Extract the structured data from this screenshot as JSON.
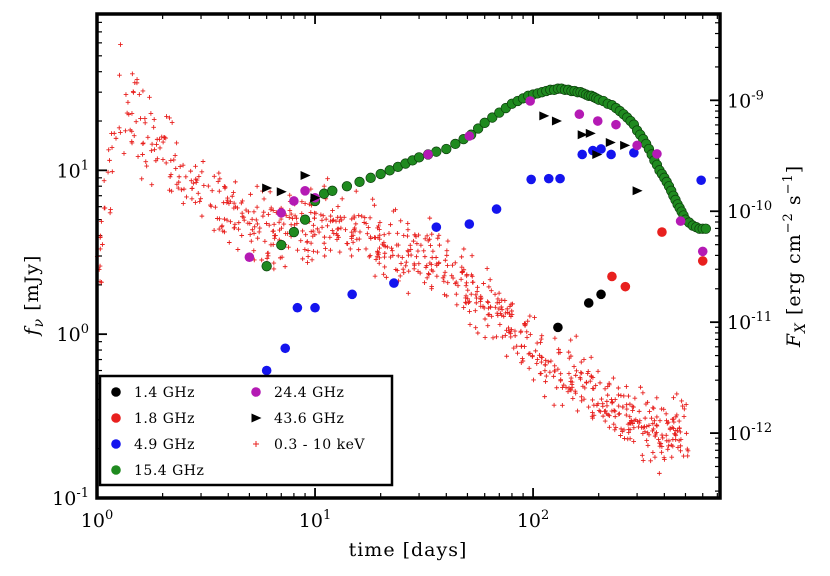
{
  "chart_data": {
    "type": "scatter",
    "xlabel": "time [days]",
    "ylabel_left": "f_ν [mJy]",
    "ylabel_right": "F_X [erg cm^-2 s^-1]",
    "x_scale": "log",
    "y_scale": "log",
    "xlim": [
      1,
      720
    ],
    "ylim": [
      0.1,
      90
    ],
    "right_ylim": [
      2.6e-13,
      6e-09
    ],
    "x_ticks": [
      {
        "value": 1,
        "base": "10",
        "exp": "0"
      },
      {
        "value": 10,
        "base": "10",
        "exp": "1"
      },
      {
        "value": 100,
        "base": "10",
        "exp": "2"
      }
    ],
    "y_ticks": [
      {
        "value": 0.1,
        "base": "10",
        "exp": "-1"
      },
      {
        "value": 1,
        "base": "10",
        "exp": "0"
      },
      {
        "value": 10,
        "base": "10",
        "exp": "1"
      }
    ],
    "right_ticks": [
      {
        "value": 1e-12,
        "base": "10",
        "exp": "-12"
      },
      {
        "value": 1e-11,
        "base": "10",
        "exp": "-11"
      },
      {
        "value": 1e-10,
        "base": "10",
        "exp": "-10"
      },
      {
        "value": 1e-09,
        "base": "10",
        "exp": "-9"
      }
    ],
    "legend_position": "lower-left",
    "series": [
      {
        "name": "1.4 GHz",
        "color": "#000000",
        "marker": "circle",
        "x": [
          130,
          180,
          205
        ],
        "y": [
          1.1,
          1.55,
          1.75
        ]
      },
      {
        "name": "1.8 GHz",
        "color": "#e8201e",
        "marker": "circle",
        "x": [
          230,
          265,
          390,
          600
        ],
        "y": [
          2.25,
          1.95,
          4.2,
          2.8
        ]
      },
      {
        "name": "4.9 GHz",
        "color": "#1414ee",
        "marker": "circle",
        "x": [
          6,
          7.3,
          8.3,
          10,
          14.8,
          23,
          36,
          51,
          68,
          98,
          118,
          133,
          168,
          188,
          205,
          228,
          290,
          590
        ],
        "y": [
          0.6,
          0.82,
          1.45,
          1.45,
          1.75,
          2.05,
          4.5,
          4.7,
          5.8,
          8.8,
          8.9,
          8.9,
          12.5,
          13.2,
          13.5,
          12.5,
          12.8,
          8.7
        ]
      },
      {
        "name": "15.4 GHz",
        "color": "#1f8a1f",
        "marker": "circle",
        "x": [
          6,
          7,
          8,
          9,
          10,
          11,
          12,
          14,
          16,
          18,
          20,
          22,
          24,
          26,
          28,
          30,
          33,
          36,
          40,
          44,
          48,
          52,
          56,
          60,
          65,
          70,
          75,
          80,
          85,
          90,
          95,
          100,
          105,
          110,
          115,
          120,
          125,
          130,
          135,
          140,
          145,
          150,
          155,
          160,
          165,
          170,
          175,
          180,
          185,
          190,
          195,
          200,
          210,
          220,
          230,
          240,
          250,
          260,
          270,
          280,
          290,
          300,
          310,
          320,
          330,
          340,
          350,
          360,
          370,
          380,
          390,
          400,
          410,
          420,
          430,
          440,
          450,
          460,
          470,
          480,
          490,
          500,
          520,
          540,
          560,
          580,
          600,
          620
        ],
        "y": [
          2.6,
          3.5,
          4.2,
          5.0,
          6.5,
          7.2,
          7.5,
          8.0,
          8.5,
          9.0,
          9.5,
          10.0,
          10.5,
          11.0,
          11.5,
          12.0,
          12.5,
          13.0,
          13.5,
          14.5,
          15.5,
          16.5,
          18.0,
          19.5,
          21.0,
          22.5,
          24.0,
          25.5,
          26.5,
          27.5,
          28.5,
          29.0,
          29.5,
          30.0,
          30.5,
          31.0,
          31.0,
          31.5,
          31.5,
          31.0,
          31.0,
          30.5,
          30.5,
          30.0,
          30.0,
          29.5,
          29.0,
          28.5,
          28.5,
          28.0,
          27.5,
          27.0,
          26.5,
          25.5,
          25.0,
          24.0,
          23.0,
          22.0,
          21.0,
          20.0,
          19.0,
          17.5,
          16.5,
          15.5,
          14.5,
          13.5,
          12.5,
          11.5,
          10.8,
          10.0,
          9.5,
          9.0,
          8.5,
          8.0,
          7.5,
          7.0,
          6.6,
          6.2,
          5.9,
          5.6,
          5.3,
          5.0,
          4.8,
          4.6,
          4.5,
          4.4,
          4.4,
          4.4
        ]
      },
      {
        "name": "24.4 GHz",
        "color": "#b41ab4",
        "marker": "circle",
        "x": [
          5,
          7,
          8,
          9,
          10,
          33,
          51,
          97,
          163,
          198,
          240,
          300,
          370,
          475,
          600
        ],
        "y": [
          2.95,
          5.5,
          6.5,
          7.5,
          6.8,
          12.5,
          16.2,
          26.5,
          22,
          20,
          19,
          14.2,
          12.6,
          4.9,
          3.2
        ]
      },
      {
        "name": "43.6 GHz",
        "color": "#000000",
        "marker": "triangle-right",
        "x": [
          6,
          7,
          9,
          10,
          112,
          128,
          168,
          183,
          196,
          226,
          263,
          300
        ],
        "y": [
          7.8,
          7.4,
          9.3,
          6.8,
          21.5,
          20,
          16.5,
          16.8,
          12.5,
          14.8,
          14.2,
          7.5
        ]
      },
      {
        "name": "0.3 - 10 keV",
        "color": "#e8201e",
        "marker": "plus"
      }
    ],
    "xray_envelope": [
      [
        1.0,
        2.5,
        0.35
      ],
      [
        1.3,
        28,
        0.45
      ],
      [
        1.6,
        20,
        0.45
      ],
      [
        2.2,
        11,
        0.35
      ],
      [
        3.0,
        7.0,
        0.3
      ],
      [
        5.0,
        4.5,
        0.3
      ],
      [
        8.0,
        4.2,
        0.3
      ],
      [
        12,
        4.8,
        0.3
      ],
      [
        20,
        3.5,
        0.3
      ],
      [
        35,
        2.8,
        0.3
      ],
      [
        60,
        1.6,
        0.3
      ],
      [
        100,
        0.8,
        0.3
      ],
      [
        160,
        0.55,
        0.3
      ],
      [
        250,
        0.35,
        0.3
      ],
      [
        400,
        0.25,
        0.3
      ]
    ]
  }
}
